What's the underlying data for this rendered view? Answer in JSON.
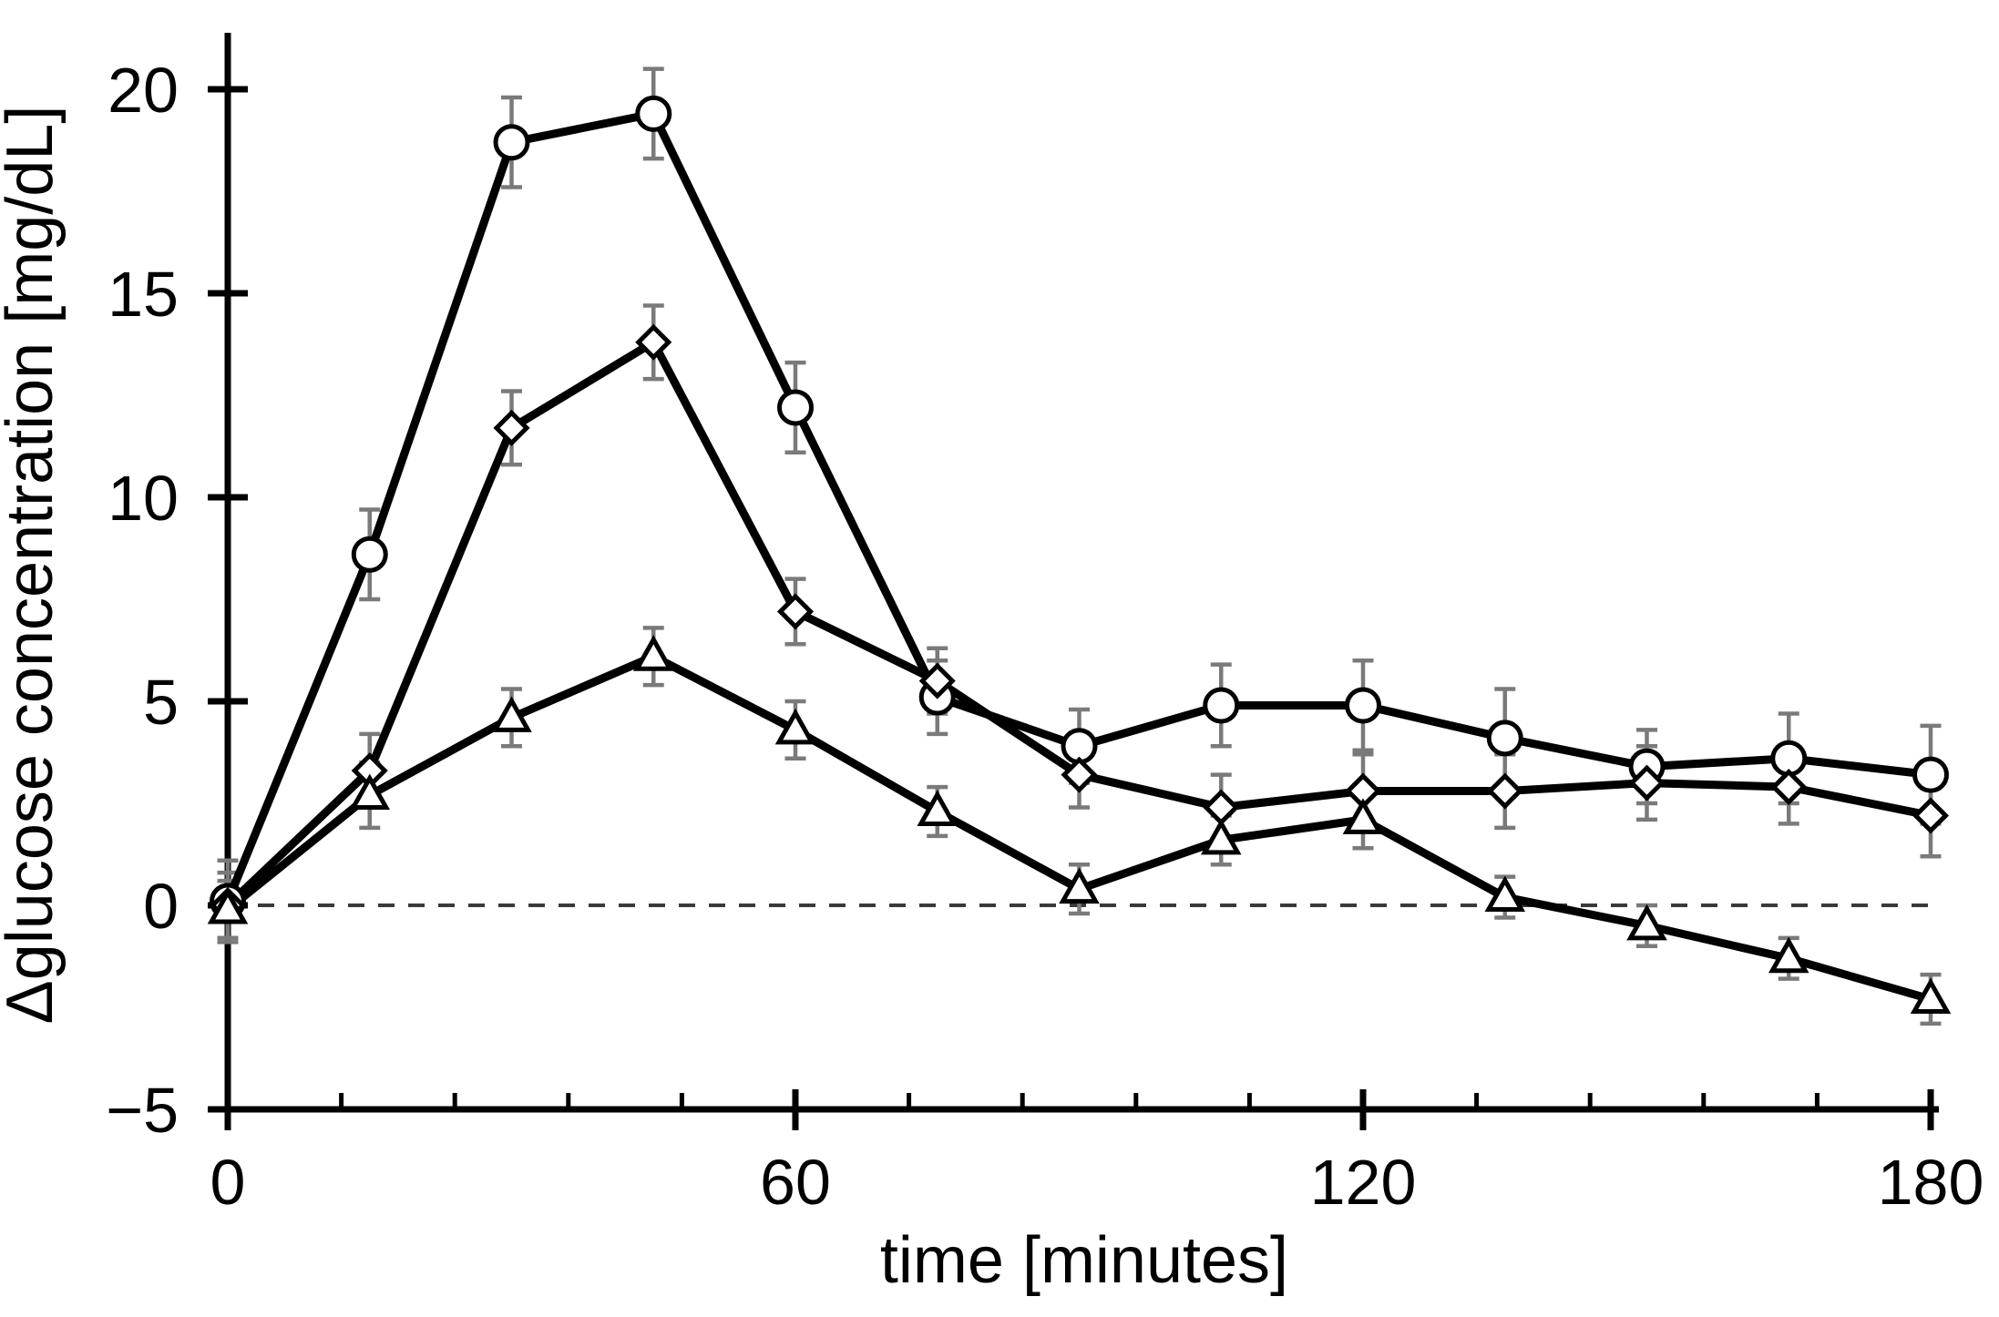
{
  "chart_data": {
    "type": "line",
    "title": "",
    "xlabel": "time [minutes]",
    "ylabel": "Δglucose concentration [mg/dL]",
    "x": [
      0,
      15,
      30,
      45,
      60,
      75,
      90,
      105,
      120,
      135,
      150,
      165,
      180
    ],
    "series": [
      {
        "name": "circle",
        "marker": "circle",
        "values": [
          0.1,
          8.6,
          18.7,
          19.4,
          12.2,
          5.1,
          3.9,
          4.9,
          4.9,
          4.1,
          3.4,
          3.6,
          3.2
        ],
        "errors": [
          1.0,
          1.1,
          1.1,
          1.1,
          1.1,
          0.9,
          0.9,
          1.0,
          1.1,
          1.2,
          0.9,
          1.1,
          1.2
        ]
      },
      {
        "name": "diamond",
        "marker": "diamond",
        "values": [
          0.0,
          3.3,
          11.7,
          13.8,
          7.2,
          5.5,
          3.2,
          2.4,
          2.8,
          2.8,
          3.0,
          2.9,
          2.2
        ],
        "errors": [
          0.8,
          0.9,
          0.9,
          0.9,
          0.8,
          0.8,
          0.8,
          0.8,
          0.9,
          0.9,
          0.9,
          0.9,
          1.0
        ]
      },
      {
        "name": "triangle",
        "marker": "triangle",
        "values": [
          -0.1,
          2.7,
          4.6,
          6.1,
          4.3,
          2.3,
          0.4,
          1.6,
          2.1,
          0.2,
          -0.5,
          -1.3,
          -2.3
        ],
        "errors": [
          0.7,
          0.8,
          0.7,
          0.7,
          0.7,
          0.6,
          0.6,
          0.6,
          0.7,
          0.5,
          0.5,
          0.5,
          0.6
        ]
      }
    ],
    "xlim": [
      0,
      180
    ],
    "ylim": [
      -5,
      21
    ],
    "yticks": [
      20,
      15,
      10,
      5,
      0,
      -5
    ],
    "ytick_labels": [
      "20",
      "15",
      "10",
      "5",
      "0",
      "−5"
    ],
    "xticks": [
      0,
      60,
      120,
      180
    ],
    "xtick_labels": [
      "0",
      "60",
      "120",
      "180"
    ],
    "x_minor_step": 12,
    "zero_line_dashed": true,
    "grid": false,
    "legend": "none",
    "error_bars": true,
    "colors": {
      "series_line": "#000000",
      "marker_fill": "#ffffff",
      "marker_stroke": "#000000",
      "error_bar": "#7a7a7a",
      "axis": "#000000",
      "zero_line": "#3a3a3a",
      "text": "#000000"
    }
  }
}
